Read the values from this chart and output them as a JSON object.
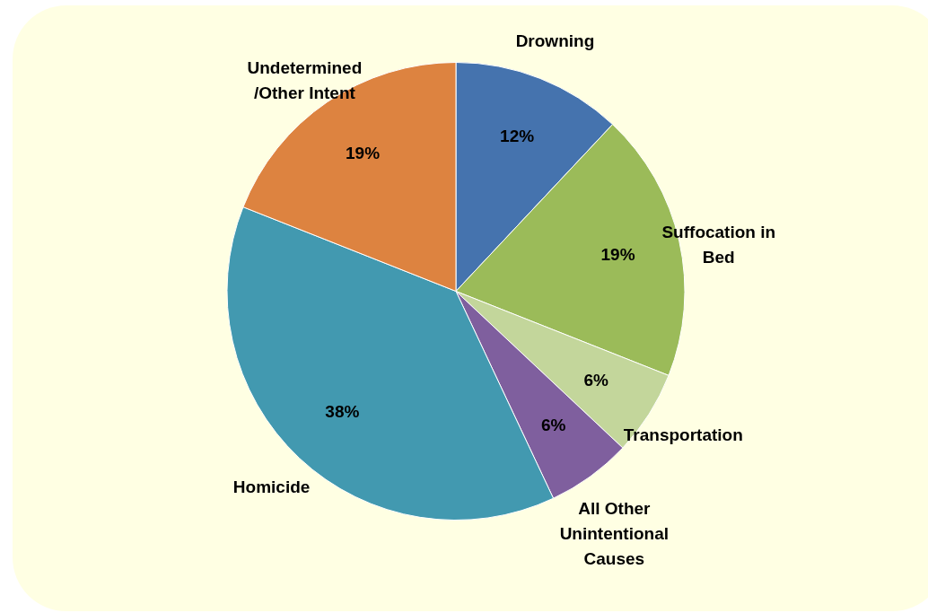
{
  "chart_data": {
    "type": "pie",
    "categories": [
      "Drowning",
      "Suffocation in Bed",
      "Transportation",
      "All Other Unintentional Causes",
      "Homicide",
      "Undetermined /Other Intent"
    ],
    "values": [
      12,
      19,
      6,
      6,
      38,
      19
    ],
    "value_labels": [
      "12%",
      "19%",
      "6%",
      "6%",
      "38%",
      "19%"
    ],
    "colors": [
      "#4573ae",
      "#9bbb59",
      "#c3d69b",
      "#7f5f9e",
      "#4299b0",
      "#dd8340"
    ]
  }
}
